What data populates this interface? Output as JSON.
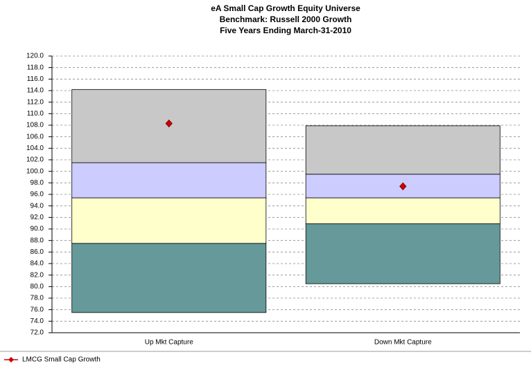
{
  "chart_data": {
    "type": "floating-box",
    "title": [
      "eA Small Cap Growth Equity Universe",
      "Benchmark: Russell 2000 Growth",
      "Five Years Ending March-31-2010"
    ],
    "categories": [
      "Up Mkt Capture",
      "Down Mkt Capture"
    ],
    "ranges": [
      [
        75.5,
        87.5,
        95.4,
        101.5,
        114.2
      ],
      [
        80.5,
        90.9,
        95.4,
        99.5,
        107.9
      ]
    ],
    "range_colors": [
      "#669999",
      "#ffffcc",
      "#ccccff",
      "#c8c8c8"
    ],
    "series": [
      {
        "name": "LMCG Small Cap Growth",
        "color": "#cc0000",
        "values": [
          108.3,
          97.4
        ]
      }
    ],
    "ylim": [
      72,
      120
    ],
    "yticks": [
      {
        "value": 72,
        "label": "72.0"
      },
      {
        "value": 74,
        "label": "74.0"
      },
      {
        "value": 76,
        "label": "76.0"
      },
      {
        "value": 78,
        "label": "78.0"
      },
      {
        "value": 80,
        "label": "80.0"
      },
      {
        "value": 82,
        "label": "82.0"
      },
      {
        "value": 84,
        "label": "84.0"
      },
      {
        "value": 86,
        "label": "86.0"
      },
      {
        "value": 88,
        "label": "88.0"
      },
      {
        "value": 90,
        "label": "90.0"
      },
      {
        "value": 92,
        "label": "92.0"
      },
      {
        "value": 94,
        "label": "94.0"
      },
      {
        "value": 96,
        "label": "96.0"
      },
      {
        "value": 98,
        "label": "98.0"
      },
      {
        "value": 100,
        "label": "100.0"
      },
      {
        "value": 102,
        "label": "102.0"
      },
      {
        "value": 104,
        "label": "104.0"
      },
      {
        "value": 106,
        "label": "106.0"
      },
      {
        "value": 108,
        "label": "108.0"
      },
      {
        "value": 110,
        "label": "110.0"
      },
      {
        "value": 112,
        "label": "112.0"
      },
      {
        "value": 114,
        "label": "114.0"
      },
      {
        "value": 116,
        "label": "116.0"
      },
      {
        "value": 118,
        "label": "118.0"
      },
      {
        "value": 120,
        "label": "120.0"
      }
    ],
    "grid": true
  }
}
